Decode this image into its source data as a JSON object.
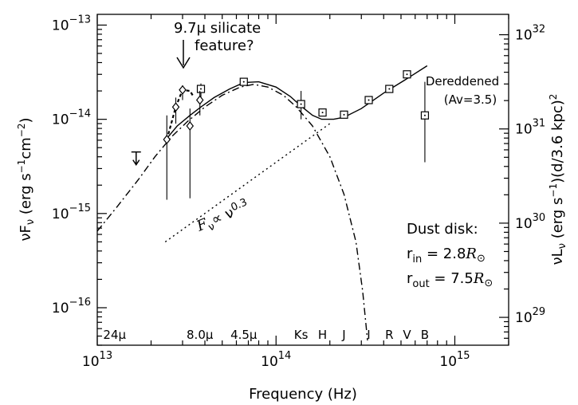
{
  "chart_data": {
    "type": "scatter",
    "xscale": "log",
    "yscale": "log",
    "xlim": [
      10000000000000.0,
      2000000000000000.0
    ],
    "ylim": [
      4e-17,
      1.3e-13
    ],
    "xlabel": "Frequency (Hz)",
    "ylabel_left": "νF_ν (erg s^-1 cm^-2)",
    "ylabel_right": "νL_ν (erg s^-1)(d/3.6 kpc)^2",
    "x_ticks": [
      {
        "value": 10000000000000.0,
        "base": "10",
        "exp": "13"
      },
      {
        "value": 100000000000000.0,
        "base": "10",
        "exp": "14"
      },
      {
        "value": 1000000000000000.0,
        "base": "10",
        "exp": "15"
      }
    ],
    "y_ticks_left": [
      {
        "value": 1e-13,
        "base": "10",
        "exp": "−13"
      },
      {
        "value": 1e-14,
        "base": "10",
        "exp": "−14"
      },
      {
        "value": 1e-15,
        "base": "10",
        "exp": "−15"
      },
      {
        "value": 1e-16,
        "base": "10",
        "exp": "−16"
      }
    ],
    "y_ticks_right": [
      {
        "value": 7.9e-14,
        "base": "10",
        "exp": "32"
      },
      {
        "value": 7.9e-15,
        "base": "10",
        "exp": "31"
      },
      {
        "value": 7.9e-16,
        "base": "10",
        "exp": "30"
      },
      {
        "value": 7.9e-17,
        "base": "10",
        "exp": "29"
      }
    ],
    "band_labels": [
      {
        "text": "24μ",
        "x": 12500000000000.0
      },
      {
        "text": "8.0μ",
        "x": 37500000000000.0
      },
      {
        "text": "4.5μ",
        "x": 66000000000000.0
      },
      {
        "text": "Ks",
        "x": 138000000000000.0
      },
      {
        "text": "H",
        "x": 182000000000000.0
      },
      {
        "text": "J",
        "x": 240000000000000.0
      },
      {
        "text": "I",
        "x": 330000000000000.0
      },
      {
        "text": "R",
        "x": 430000000000000.0
      },
      {
        "text": "V",
        "x": 540000000000000.0
      },
      {
        "text": "B",
        "x": 680000000000000.0
      }
    ],
    "series": [
      {
        "marker": "square",
        "points": [
          {
            "x": 38000000000000.0,
            "y": 2.1e-14,
            "ylo": 1.5e-14,
            "yhi": 2.4e-14
          },
          {
            "x": 66000000000000.0,
            "y": 2.5e-14,
            "ylo": 2.4e-14,
            "yhi": 2.6e-14
          },
          {
            "x": 138000000000000.0,
            "y": 1.45e-14,
            "ylo": 1e-14,
            "yhi": 2e-14
          },
          {
            "x": 182000000000000.0,
            "y": 1.18e-14,
            "ylo": 1.08e-14,
            "yhi": 1.28e-14
          },
          {
            "x": 240000000000000.0,
            "y": 1.12e-14,
            "ylo": 1.02e-14,
            "yhi": 1.22e-14
          },
          {
            "x": 330000000000000.0,
            "y": 1.6e-14,
            "ylo": 1.52e-14,
            "yhi": 1.68e-14
          },
          {
            "x": 430000000000000.0,
            "y": 2.1e-14,
            "ylo": 2e-14,
            "yhi": 2.2e-14
          },
          {
            "x": 540000000000000.0,
            "y": 3e-14,
            "ylo": 2.85e-14,
            "yhi": 3.15e-14
          },
          {
            "x": 680000000000000.0,
            "y": 1.1e-14,
            "ylo": 3.5e-15,
            "yhi": 2.5e-14
          }
        ]
      },
      {
        "marker": "diamond",
        "points": [
          {
            "x": 24500000000000.0,
            "y": 6.1e-15,
            "ylo": 1.4e-15,
            "yhi": 1.1e-14
          },
          {
            "x": 27500000000000.0,
            "y": 1.35e-14,
            "ylo": 9e-15,
            "yhi": 1.7e-14
          },
          {
            "x": 30000000000000.0,
            "y": 2.05e-14,
            "ylo": 1.6e-14,
            "yhi": 2.3e-14
          },
          {
            "x": 33000000000000.0,
            "y": 8.5e-15,
            "ylo": 1.45e-15,
            "yhi": 1.3e-14
          },
          {
            "x": 37500000000000.0,
            "y": 1.6e-14,
            "ylo": 1.1e-14,
            "yhi": 2e-14
          }
        ]
      },
      {
        "marker": "upper-limit",
        "points": [
          {
            "x": 16500000000000.0,
            "y": 4.5e-15
          }
        ]
      },
      {
        "style": "solid",
        "points": [
          [
            24000000000000.0,
            6e-15
          ],
          [
            28000000000000.0,
            8.5e-15
          ],
          [
            33000000000000.0,
            1.1e-14
          ],
          [
            38000000000000.0,
            1.35e-14
          ],
          [
            45000000000000.0,
            1.7e-14
          ],
          [
            55000000000000.0,
            2.1e-14
          ],
          [
            66000000000000.0,
            2.45e-14
          ],
          [
            80000000000000.0,
            2.5e-14
          ],
          [
            100000000000000.0,
            2.2e-14
          ],
          [
            120000000000000.0,
            1.75e-14
          ],
          [
            140000000000000.0,
            1.35e-14
          ],
          [
            160000000000000.0,
            1.1e-14
          ],
          [
            180000000000000.0,
            1e-14
          ],
          [
            210000000000000.0,
            1e-14
          ],
          [
            240000000000000.0,
            1.05e-14
          ],
          [
            300000000000000.0,
            1.3e-14
          ],
          [
            400000000000000.0,
            1.9e-14
          ],
          [
            540000000000000.0,
            2.7e-14
          ],
          [
            700000000000000.0,
            3.7e-14
          ]
        ]
      },
      {
        "style": "dashdot",
        "points": [
          [
            10000000000000.0,
            6.5e-16
          ],
          [
            13000000000000.0,
            1.2e-15
          ],
          [
            17000000000000.0,
            2.3e-15
          ],
          [
            21000000000000.0,
            4e-15
          ],
          [
            26000000000000.0,
            6.5e-15
          ],
          [
            32000000000000.0,
            9.5e-15
          ],
          [
            40000000000000.0,
            1.35e-14
          ],
          [
            50000000000000.0,
            1.8e-14
          ],
          [
            63000000000000.0,
            2.2e-14
          ],
          [
            75000000000000.0,
            2.35e-14
          ],
          [
            90000000000000.0,
            2.2e-14
          ],
          [
            110000000000000.0,
            1.8e-14
          ],
          [
            130000000000000.0,
            1.35e-14
          ],
          [
            160000000000000.0,
            8.5e-15
          ],
          [
            200000000000000.0,
            4e-15
          ],
          [
            240000000000000.0,
            1.6e-15
          ],
          [
            280000000000000.0,
            5e-16
          ],
          [
            305000000000000.0,
            1.5e-16
          ],
          [
            325000000000000.0,
            4.5e-17
          ]
        ]
      },
      {
        "style": "dotted",
        "points": [
          [
            24000000000000.0,
            5e-16
          ],
          [
            200000000000000.0,
            9e-15
          ]
        ]
      },
      {
        "style": "dashed",
        "points": [
          [
            24500000000000.0,
            6.1e-15
          ],
          [
            27500000000000.0,
            1.35e-14
          ],
          [
            30000000000000.0,
            2.05e-14
          ],
          [
            33000000000000.0,
            2e-14
          ],
          [
            34500000000000.0,
            1.75e-14
          ]
        ]
      }
    ],
    "annotations": {
      "silicate_line1": "9.7μ silicate",
      "silicate_line2": "feature?",
      "dereddened_line1": "Dereddened",
      "dereddened_line2": "(Av=3.5)",
      "powerlaw": "F",
      "powerlaw_sub": "ν",
      "powerlaw_tail": "∝ ν",
      "powerlaw_exp": "0.3",
      "disk_title": "Dust disk:",
      "rin_label": "r",
      "rin_sub": "in",
      "rin_value": " = 2.8",
      "rout_label": "r",
      "rout_sub": "out",
      "rout_value": " = 7.5",
      "rsun_symbol": "R",
      "rsun_sub": "⊙"
    }
  }
}
